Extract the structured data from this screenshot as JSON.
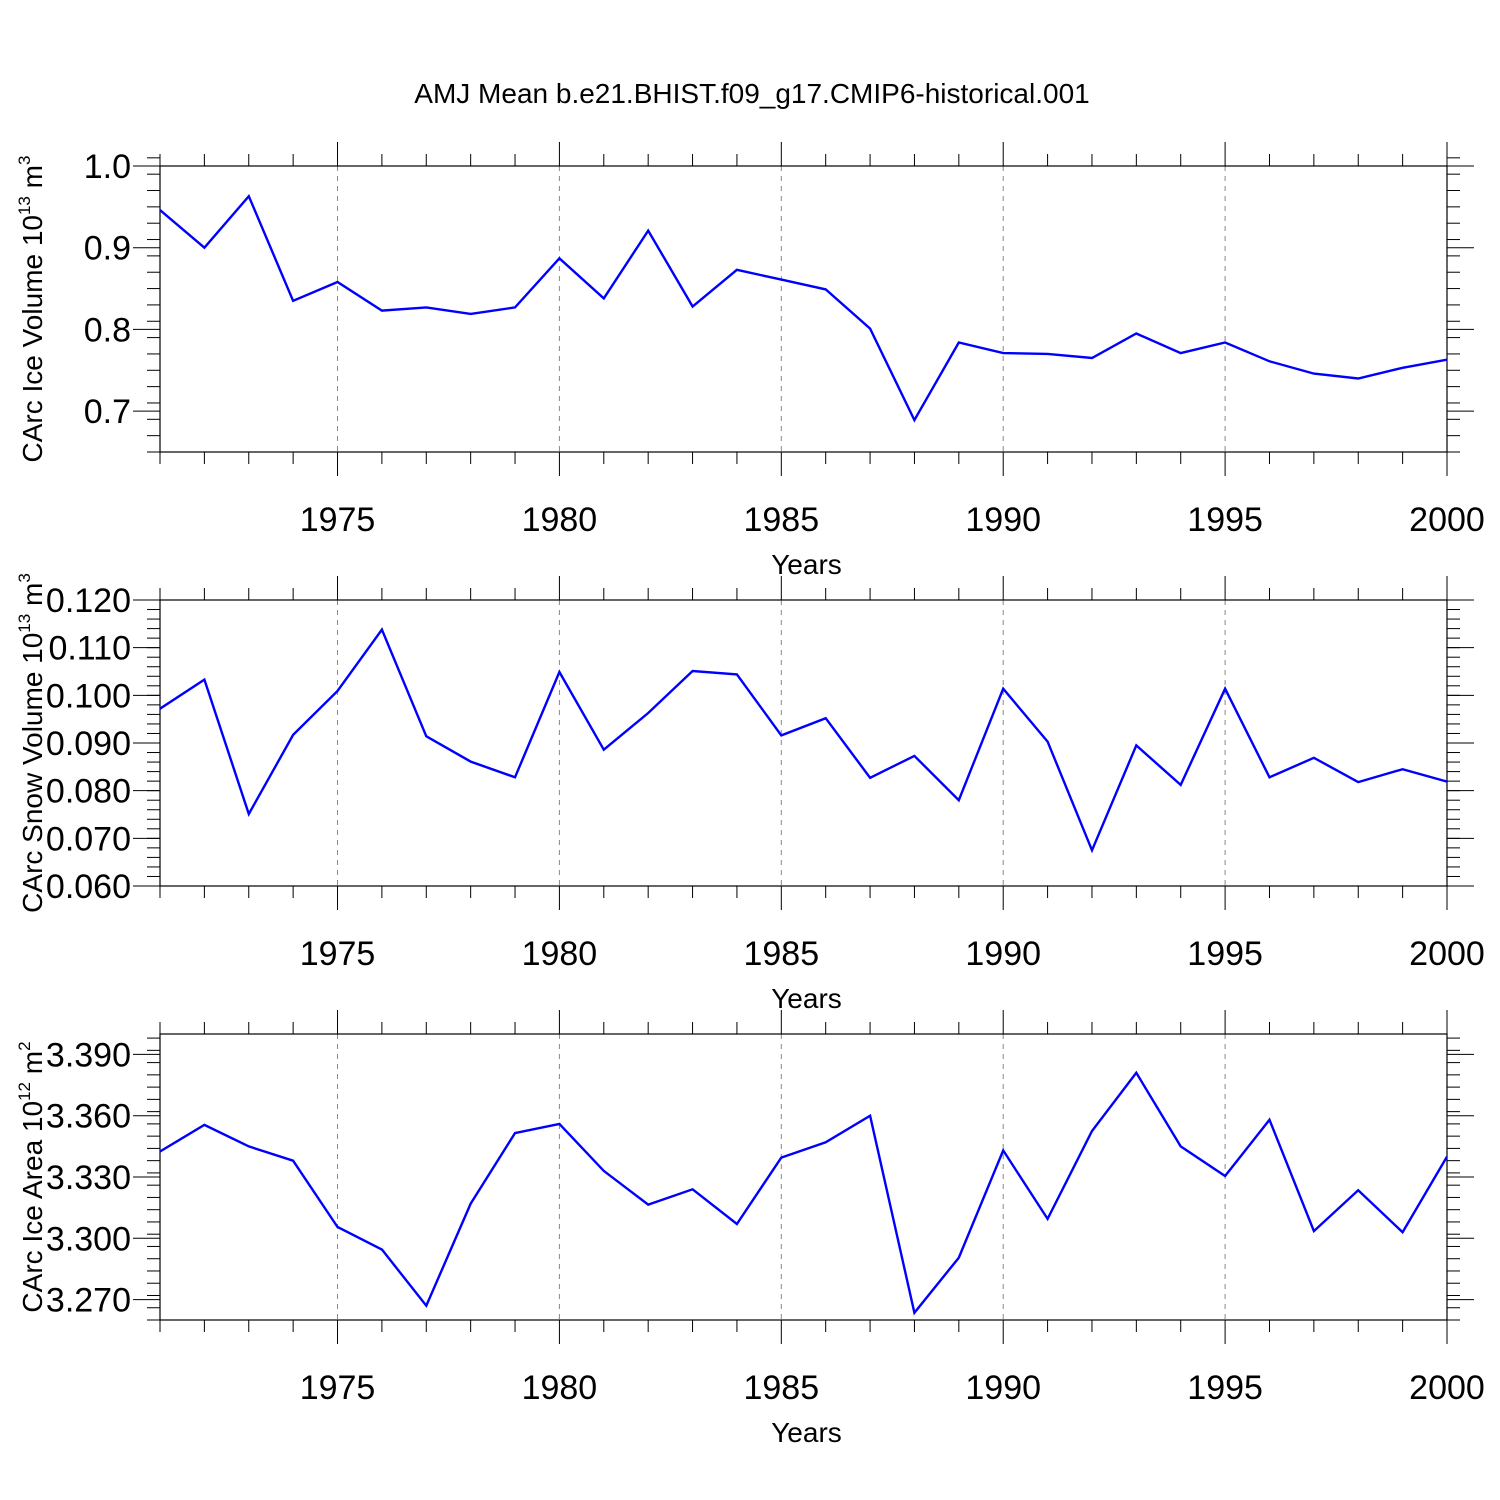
{
  "title": "AMJ Mean b.e21.BHIST.f09_g17.CMIP6-historical.001",
  "colors": {
    "line": "#0000ff",
    "grid": "#888888",
    "axis": "#000000"
  },
  "chart_data": [
    {
      "type": "line",
      "xlabel": "Years",
      "ylabel": {
        "text": "CArc Ice Volume 10",
        "exp": "13",
        "unit": " m",
        "unit_exp": "3"
      },
      "xlim": [
        1971,
        2000
      ],
      "ylim": [
        0.65,
        1.0
      ],
      "xticks": [
        1975,
        1980,
        1985,
        1990,
        1995,
        2000
      ],
      "xtick_labels": [
        "1975",
        "1980",
        "1985",
        "1990",
        "1995",
        "2000"
      ],
      "yticks": [
        0.7,
        0.8,
        0.9,
        1.0
      ],
      "ytick_labels": [
        "0.7",
        "0.8",
        "0.9",
        "1.0"
      ],
      "y_minor_step": 0.02,
      "grid": "x-major dashed",
      "x": [
        1971,
        1972,
        1973,
        1974,
        1975,
        1976,
        1977,
        1978,
        1979,
        1980,
        1981,
        1982,
        1983,
        1984,
        1985,
        1986,
        1987,
        1988,
        1989,
        1990,
        1991,
        1992,
        1993,
        1994,
        1995,
        1996,
        1997,
        1998,
        1999,
        2000
      ],
      "y": [
        0.946,
        0.9,
        0.963,
        0.835,
        0.858,
        0.823,
        0.827,
        0.819,
        0.827,
        0.887,
        0.838,
        0.921,
        0.828,
        0.873,
        0.861,
        0.849,
        0.801,
        0.689,
        0.784,
        0.771,
        0.77,
        0.765,
        0.795,
        0.771,
        0.784,
        0.761,
        0.746,
        0.74,
        0.753,
        0.763
      ]
    },
    {
      "type": "line",
      "xlabel": "Years",
      "ylabel": {
        "text": "CArc Snow Volume 10",
        "exp": "13",
        "unit": " m",
        "unit_exp": "3"
      },
      "xlim": [
        1971,
        2000
      ],
      "ylim": [
        0.06,
        0.12
      ],
      "xticks": [
        1975,
        1980,
        1985,
        1990,
        1995,
        2000
      ],
      "xtick_labels": [
        "1975",
        "1980",
        "1985",
        "1990",
        "1995",
        "2000"
      ],
      "yticks": [
        0.06,
        0.07,
        0.08,
        0.09,
        0.1,
        0.11,
        0.12
      ],
      "ytick_labels": [
        "0.060",
        "0.070",
        "0.080",
        "0.090",
        "0.100",
        "0.110",
        "0.120"
      ],
      "y_minor_step": 0.002,
      "grid": "x-major dashed",
      "x": [
        1971,
        1972,
        1973,
        1974,
        1975,
        1976,
        1977,
        1978,
        1979,
        1980,
        1981,
        1982,
        1983,
        1984,
        1985,
        1986,
        1987,
        1988,
        1989,
        1990,
        1991,
        1992,
        1993,
        1994,
        1995,
        1996,
        1997,
        1998,
        1999,
        2000
      ],
      "y": [
        0.0972,
        0.1033,
        0.0751,
        0.0917,
        0.1009,
        0.1138,
        0.0914,
        0.0861,
        0.0828,
        0.1049,
        0.0886,
        0.0963,
        0.1051,
        0.1044,
        0.0916,
        0.0952,
        0.0827,
        0.0873,
        0.078,
        0.1014,
        0.0903,
        0.0675,
        0.0895,
        0.0812,
        0.1014,
        0.0828,
        0.0869,
        0.0818,
        0.0845,
        0.0819
      ]
    },
    {
      "type": "line",
      "xlabel": "Years",
      "ylabel": {
        "text": "CArc Ice Area 10",
        "exp": "12",
        "unit": " m",
        "unit_exp": "2"
      },
      "xlim": [
        1971,
        2000
      ],
      "ylim": [
        3.26,
        3.4
      ],
      "xticks": [
        1975,
        1980,
        1985,
        1990,
        1995,
        2000
      ],
      "xtick_labels": [
        "1975",
        "1980",
        "1985",
        "1990",
        "1995",
        "2000"
      ],
      "yticks": [
        3.27,
        3.3,
        3.33,
        3.36,
        3.39
      ],
      "ytick_labels": [
        "3.270",
        "3.300",
        "3.330",
        "3.360",
        "3.390"
      ],
      "y_minor_step": 0.006,
      "grid": "x-major dashed",
      "x": [
        1971,
        1972,
        1973,
        1974,
        1975,
        1976,
        1977,
        1978,
        1979,
        1980,
        1981,
        1982,
        1983,
        1984,
        1985,
        1986,
        1987,
        1988,
        1989,
        1990,
        1991,
        1992,
        1993,
        1994,
        1995,
        1996,
        1997,
        1998,
        1999,
        2000
      ],
      "y": [
        3.3425,
        3.3555,
        3.345,
        3.338,
        3.3055,
        3.2945,
        3.267,
        3.317,
        3.3515,
        3.356,
        3.333,
        3.3165,
        3.324,
        3.307,
        3.3395,
        3.347,
        3.36,
        3.2635,
        3.2905,
        3.343,
        3.3095,
        3.3525,
        3.381,
        3.345,
        3.3305,
        3.358,
        3.3035,
        3.3235,
        3.303,
        3.34
      ]
    }
  ]
}
